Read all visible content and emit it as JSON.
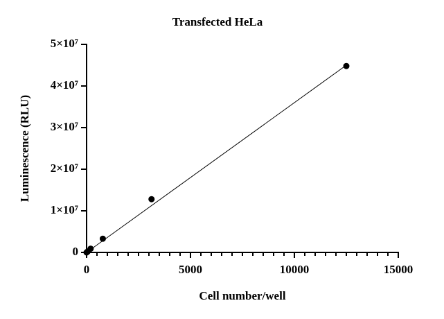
{
  "chart_data": {
    "type": "scatter",
    "title": "Transfected HeLa",
    "x_label": "Cell number/well",
    "y_label": "Luminescence (RLU)",
    "series": [
      {
        "color": "#000000",
        "x": [
          0,
          49,
          195,
          781,
          3125,
          12500
        ],
        "values": [
          0,
          200000,
          900000,
          3300000,
          12800000,
          44800000
        ]
      }
    ],
    "fit_line": {
      "color": "#000000",
      "x": [
        0,
        12500
      ],
      "values": [
        0,
        45000000
      ]
    },
    "xlim": [
      0,
      15000
    ],
    "ylim": [
      0,
      50000000
    ],
    "xticks": [
      0,
      5000,
      10000,
      15000
    ],
    "xminorticks": [
      500,
      1000,
      1500,
      2000,
      2500,
      3000,
      3500,
      4000,
      4500,
      5500,
      6000,
      6500,
      7000,
      7500,
      8000,
      8500,
      9000,
      9500,
      10500,
      11000,
      11500,
      12000,
      12500,
      13000,
      13500,
      14000,
      14500
    ],
    "yticks": [
      0,
      {
        "value": 10000000,
        "label": "1×10⁷"
      },
      {
        "value": 20000000,
        "label": "2×10⁷"
      },
      {
        "value": 30000000,
        "label": "3×10⁷"
      },
      {
        "value": 40000000,
        "label": "4×10⁷"
      },
      {
        "value": 50000000,
        "label": "5×10⁷"
      }
    ],
    "grid": false
  }
}
